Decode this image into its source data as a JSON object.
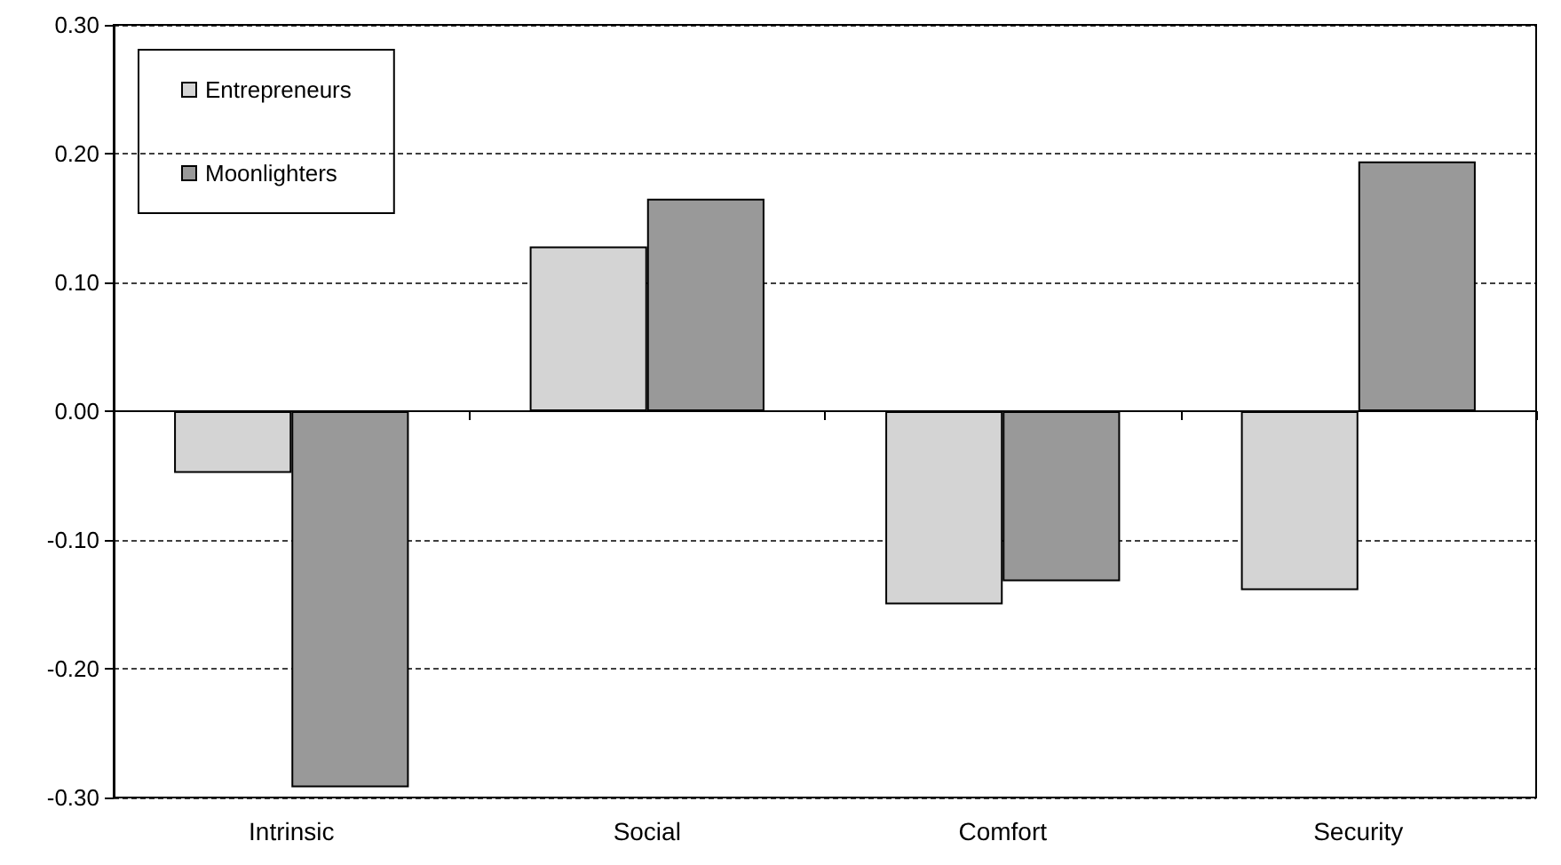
{
  "chart_data": {
    "type": "bar",
    "categories": [
      "Intrinsic",
      "Social",
      "Comfort",
      "Security"
    ],
    "series": [
      {
        "name": "Entrepreneurs",
        "color": "#d4d4d4",
        "values": [
          -0.048,
          0.128,
          -0.15,
          -0.139
        ]
      },
      {
        "name": "Moonlighters",
        "color": "#999999",
        "values": [
          -0.292,
          0.165,
          -0.132,
          0.194
        ]
      }
    ],
    "ylim": [
      -0.3,
      0.3
    ],
    "yticks": [
      {
        "value": -0.3,
        "label": "-0.30"
      },
      {
        "value": -0.2,
        "label": "-0.20"
      },
      {
        "value": -0.1,
        "label": "-0.10"
      },
      {
        "value": 0,
        "label": "0.00"
      },
      {
        "value": 0.1,
        "label": "0.10"
      },
      {
        "value": 0.2,
        "label": "0.20"
      },
      {
        "value": 0.3,
        "label": "0.30"
      }
    ],
    "grid": "y",
    "legend": "top left"
  }
}
